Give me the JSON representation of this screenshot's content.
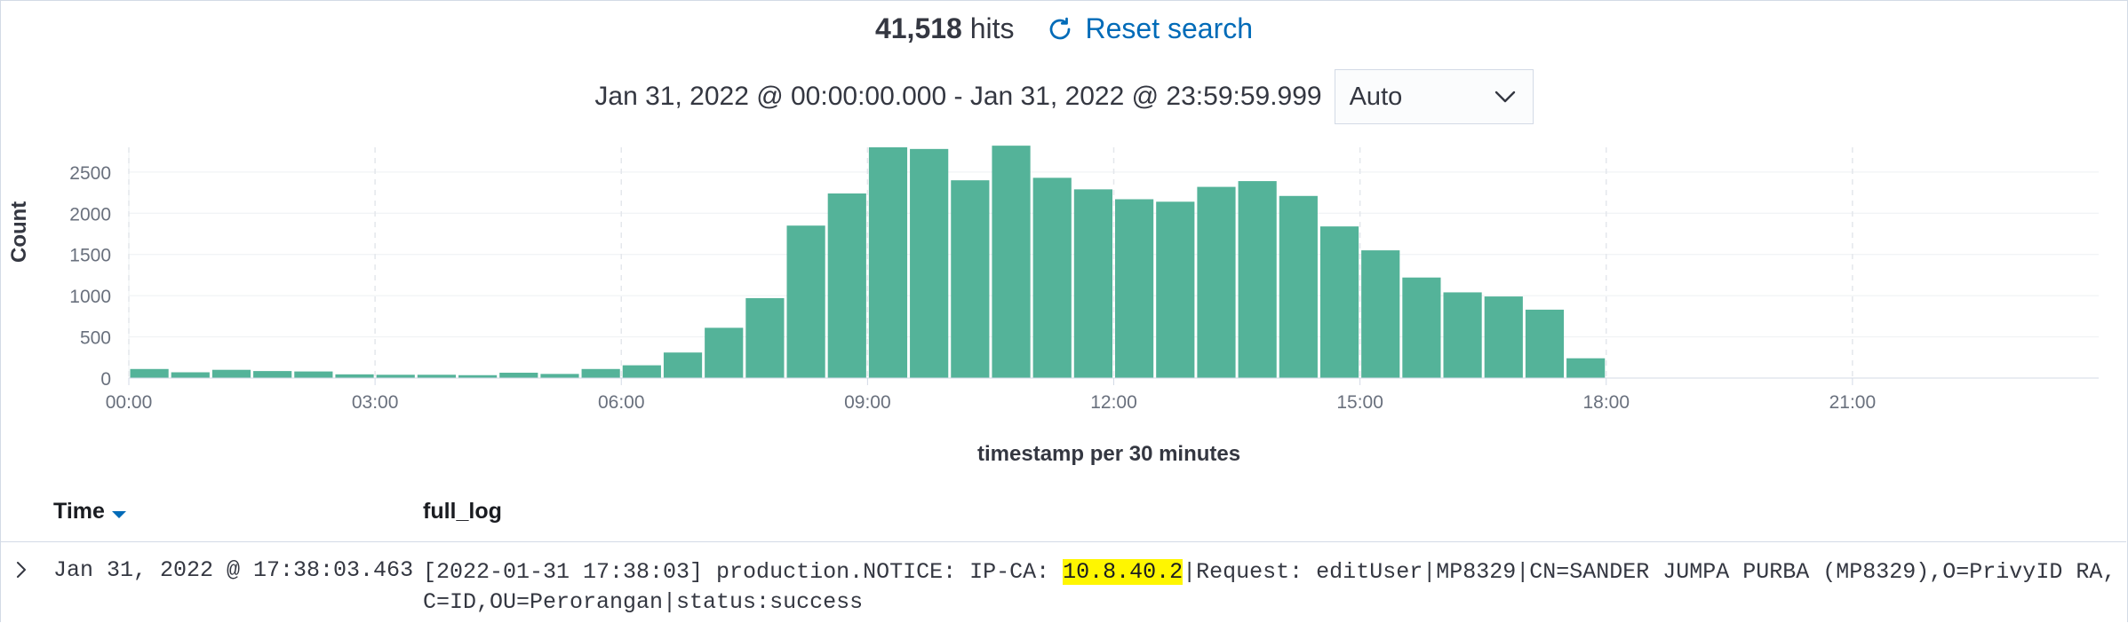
{
  "header": {
    "hits_count": "41,518",
    "hits_label": "hits",
    "reset_label": "Reset search"
  },
  "time_range": {
    "range_text": "Jan 31, 2022 @ 00:00:00.000 - Jan 31, 2022 @ 23:59:59.999",
    "interval_value": "Auto"
  },
  "chart_data": {
    "type": "bar",
    "ylabel": "Count",
    "xlabel": "timestamp per 30 minutes",
    "ylim": [
      0,
      2800
    ],
    "y_ticks": [
      0,
      500,
      1000,
      1500,
      2000,
      2500
    ],
    "x_ticks": [
      "00:00",
      "03:00",
      "06:00",
      "09:00",
      "12:00",
      "15:00",
      "18:00",
      "21:00"
    ],
    "bucket_minutes": 30,
    "grid": true,
    "color": "#54b399",
    "values": [
      110,
      70,
      100,
      85,
      80,
      45,
      40,
      40,
      35,
      65,
      50,
      110,
      155,
      310,
      610,
      970,
      1850,
      2240,
      2800,
      2780,
      2400,
      2820,
      2430,
      2290,
      2170,
      2140,
      2320,
      2390,
      2210,
      1840,
      1550,
      1220,
      1040,
      990,
      830,
      240,
      0,
      0,
      0,
      0,
      0,
      0,
      0,
      0,
      0,
      0,
      0,
      0
    ]
  },
  "table": {
    "col_time": "Time",
    "col_log": "full_log",
    "rows": [
      {
        "time": "Jan 31, 2022 @ 17:38:03.463",
        "log_before": "[2022-01-31 17:38:03] production.NOTICE: IP-CA: ",
        "log_highlight": "10.8.40.2",
        "log_after": "|Request: editUser|MP8329|CN=SANDER JUMPA PURBA (MP8329),O=PrivyID RA,C=ID,OU=Perorangan|status:success"
      }
    ]
  },
  "colors": {
    "accent": "#006bb8",
    "bar": "#54b399",
    "highlight": "#fff600"
  }
}
